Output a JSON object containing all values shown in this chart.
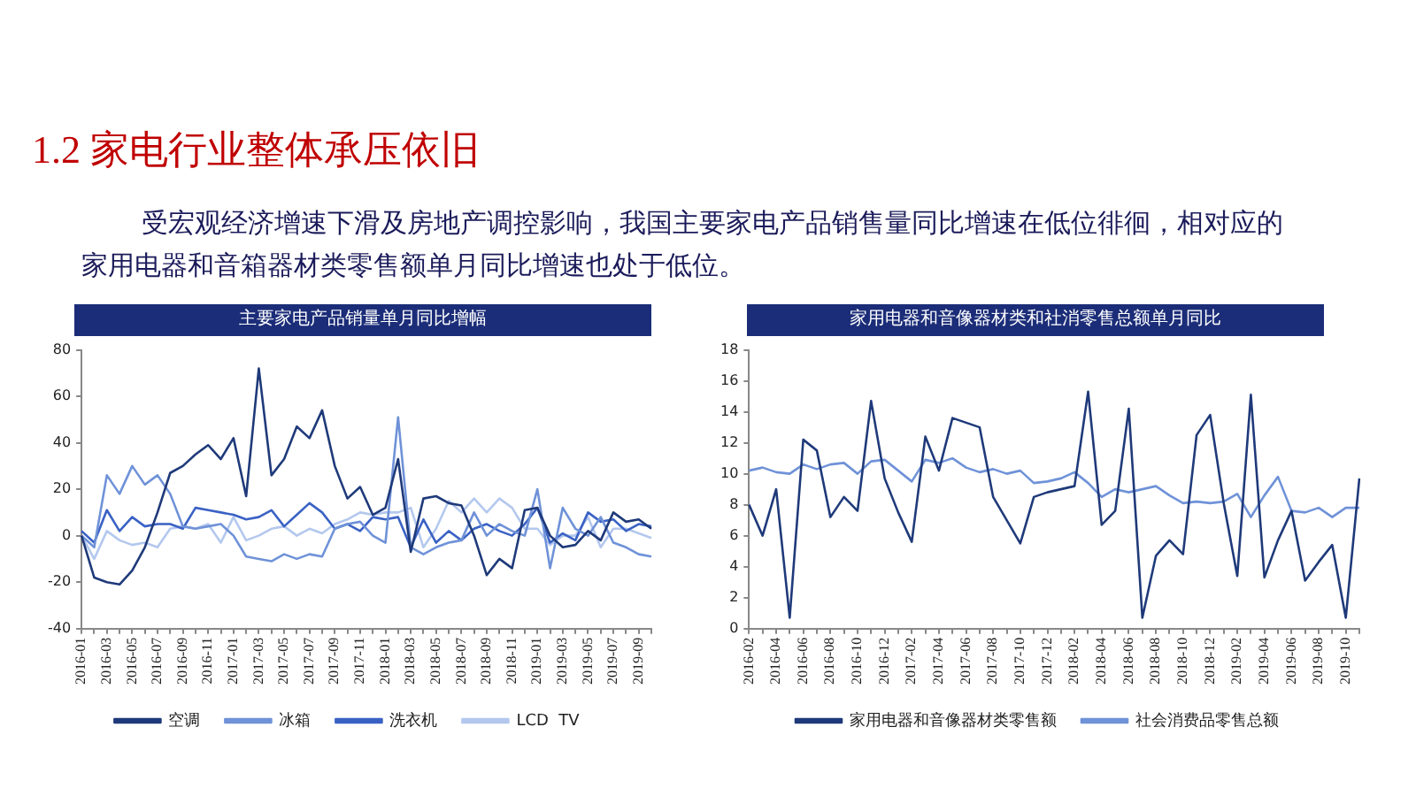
{
  "chart_data": [
    {
      "type": "line",
      "title": "主要家电产品销量单月同比增幅",
      "annotations": [
        "1.2 家电行业整体承压依旧",
        "受宏观经济增速下滑及房地产调控影响，我国主要家电产品销售量同比增速在低位徘徊，相对应的家用电器和音箱器材类零售额单月同比增速也处于低位。"
      ],
      "categories": [
        "2016-01",
        null,
        "2016-03",
        null,
        "2016-05",
        null,
        "2016-07",
        null,
        "2016-09",
        null,
        "2016-11",
        null,
        "2017-01",
        null,
        "2017-03",
        null,
        "2017-05",
        null,
        "2017-07",
        null,
        "2017-09",
        null,
        "2017-11",
        null,
        "2018-01",
        null,
        "2018-03",
        null,
        "2018-05",
        null,
        "2018-07",
        null,
        "2018-09",
        null,
        "2018-11",
        null,
        "2019-01",
        null,
        "2019-03",
        null,
        "2019-05",
        null,
        "2019-07",
        null,
        "2019-09",
        null
      ],
      "ylim": [
        -40,
        80
      ],
      "yticks": [
        -40,
        -20,
        0,
        20,
        40,
        60,
        80
      ],
      "grid": false,
      "legend": "bottom",
      "marker": "none",
      "series": [
        {
          "name": "空调",
          "color": "#1f3a7a",
          "values": [
            0,
            -18,
            -20,
            -21,
            -15,
            -5,
            10,
            27,
            30,
            35,
            39,
            33,
            42,
            17,
            72,
            26,
            33,
            47,
            42,
            54,
            30,
            16,
            21,
            9,
            12,
            33,
            -7,
            16,
            17,
            14,
            13,
            0,
            -17,
            -10,
            -14,
            11,
            12,
            0,
            -5,
            -4,
            2,
            -2,
            10,
            6,
            7,
            3
          ]
        },
        {
          "name": "冰箱",
          "color": "#6f92d8",
          "values": [
            0,
            -5,
            26,
            18,
            30,
            22,
            26,
            18,
            4,
            3,
            4,
            5,
            0,
            -9,
            -10,
            -11,
            -8,
            -10,
            -8,
            -9,
            3,
            5,
            6,
            0,
            -3,
            51,
            -5,
            -8,
            -5,
            -3,
            -2,
            10,
            0,
            5,
            2,
            0,
            20,
            -14,
            12,
            3,
            0,
            8,
            -3,
            -5,
            -8,
            -9
          ]
        },
        {
          "name": "洗衣机",
          "color": "#3a62c4",
          "values": [
            2,
            -3,
            11,
            2,
            8,
            4,
            5,
            5,
            3,
            12,
            11,
            10,
            9,
            7,
            8,
            11,
            4,
            9,
            14,
            10,
            3,
            5,
            2,
            8,
            7,
            8,
            -5,
            7,
            -3,
            2,
            -2,
            3,
            5,
            2,
            0,
            5,
            12,
            -3,
            1,
            -2,
            10,
            6,
            7,
            2,
            5,
            4
          ]
        },
        {
          "name": "LCD  TV",
          "color": "#b4c8ee",
          "values": [
            0,
            -10,
            2,
            -2,
            -4,
            -3,
            -5,
            3,
            4,
            3,
            5,
            -3,
            8,
            -2,
            0,
            3,
            4,
            0,
            3,
            1,
            5,
            7,
            10,
            9,
            10,
            10,
            12,
            -5,
            3,
            15,
            10,
            16,
            10,
            16,
            12,
            3,
            3,
            -4,
            0,
            0,
            8,
            -5,
            3,
            3,
            1,
            -1
          ]
        }
      ]
    },
    {
      "type": "line",
      "title": "家用电器和音像器材类和社消零售总额单月同比",
      "categories": [
        "2016-02",
        null,
        "2016-04",
        null,
        "2016-06",
        null,
        "2016-08",
        null,
        "2016-10",
        null,
        "2016-12",
        null,
        "2017-02",
        null,
        "2017-04",
        null,
        "2017-06",
        null,
        "2017-08",
        null,
        "2017-10",
        null,
        "2017-12",
        null,
        "2018-02",
        null,
        "2018-04",
        null,
        "2018-06",
        null,
        "2018-08",
        null,
        "2018-10",
        null,
        "2018-12",
        null,
        "2019-02",
        null,
        "2019-04",
        null,
        "2019-06",
        null,
        "2019-08",
        null,
        "2019-10",
        null
      ],
      "ylim": [
        0,
        18
      ],
      "yticks": [
        0,
        2,
        4,
        6,
        8,
        10,
        12,
        14,
        16,
        18
      ],
      "grid": false,
      "legend": "bottom",
      "marker": "none",
      "series": [
        {
          "name": "家用电器和音像器材类零售额",
          "color": "#1f3a7a",
          "values": [
            8,
            6,
            9,
            0.7,
            12.2,
            11.5,
            7.2,
            8.5,
            7.6,
            14.7,
            9.7,
            7.5,
            5.6,
            12.4,
            10.2,
            13.6,
            13.3,
            13.0,
            8.5,
            7.0,
            5.5,
            8.5,
            8.8,
            9.0,
            9.2,
            15.3,
            6.7,
            7.6,
            14.2,
            0.7,
            4.7,
            5.7,
            4.8,
            12.5,
            13.8,
            8.1,
            3.4,
            15.1,
            3.3,
            5.7,
            7.6,
            3.1,
            4.3,
            5.4,
            0.7,
            9.7
          ]
        },
        {
          "name": "社会消费品零售总额",
          "color": "#6f92d8",
          "values": [
            10.2,
            10.4,
            10.1,
            10.0,
            10.6,
            10.3,
            10.6,
            10.7,
            10.0,
            10.8,
            10.9,
            10.2,
            9.5,
            10.9,
            10.7,
            11.0,
            10.4,
            10.1,
            10.3,
            10.0,
            10.2,
            9.4,
            9.5,
            9.7,
            10.1,
            9.4,
            8.5,
            9.0,
            8.8,
            9.0,
            9.2,
            8.6,
            8.1,
            8.2,
            8.1,
            8.2,
            8.7,
            7.2,
            8.6,
            9.8,
            7.6,
            7.5,
            7.8,
            7.2,
            7.8,
            7.8
          ]
        }
      ]
    }
  ]
}
